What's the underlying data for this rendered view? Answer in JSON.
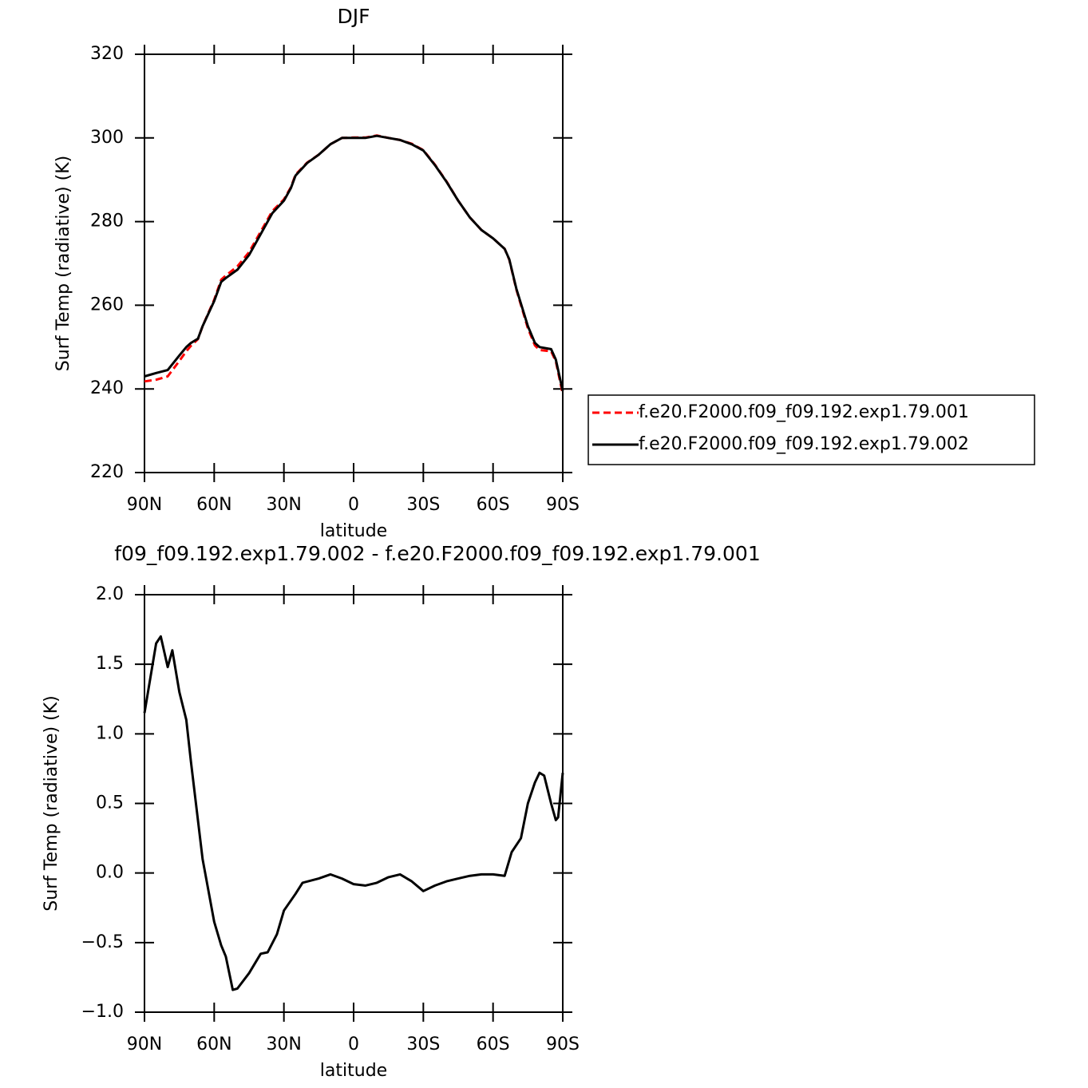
{
  "chart_data": [
    {
      "type": "line",
      "title": "DJF",
      "ylabel": "Surf Temp (radiative) (K)",
      "xlabel": "latitude",
      "x": [
        90,
        85,
        80,
        75,
        72,
        70,
        67,
        65,
        60,
        57,
        55,
        50,
        45,
        40,
        35,
        30,
        27,
        25,
        20,
        15,
        10,
        5,
        0,
        -5,
        -10,
        -15,
        -20,
        -25,
        -30,
        -35,
        -40,
        -45,
        -50,
        -55,
        -60,
        -65,
        -67,
        -70,
        -75,
        -78,
        -80,
        -85,
        -87,
        -90
      ],
      "xlim": [
        90,
        -90
      ],
      "xticks": [
        {
          "value": 90,
          "label": "90N"
        },
        {
          "value": 60,
          "label": "60N"
        },
        {
          "value": 30,
          "label": "30N"
        },
        0,
        {
          "value": -30,
          "label": "30S"
        },
        {
          "value": -60,
          "label": "60S"
        },
        {
          "value": -90,
          "label": "90S"
        }
      ],
      "ylim": [
        220,
        320
      ],
      "yticks": [
        220,
        240,
        260,
        280,
        300,
        320
      ],
      "legend": "right",
      "series": [
        {
          "name": "f.e20.F2000.f09_f09.192.exp1.79.001",
          "color": "#ff0000",
          "linestyle": "dashed",
          "values": [
            241.8,
            242.2,
            243,
            246.7,
            249,
            250.3,
            251.9,
            255,
            261.3,
            266.1,
            267.1,
            269.3,
            272.7,
            277.6,
            282.5,
            285.3,
            288.2,
            291.2,
            294.1,
            296,
            298.5,
            300,
            300.1,
            300.1,
            300.6,
            300,
            299.5,
            298.6,
            297.1,
            293.6,
            289.6,
            285,
            281,
            278,
            276,
            273.5,
            270.9,
            263.8,
            254.5,
            250.4,
            249.3,
            249,
            246.6,
            238.8
          ]
        },
        {
          "name": "f.e20.F2000.f09_f09.192.exp1.79.002",
          "color": "#000000",
          "linestyle": "solid",
          "values": [
            243,
            243.8,
            244.5,
            248,
            250,
            251,
            252,
            255,
            261,
            265.6,
            266.5,
            268.5,
            272,
            277,
            282,
            285,
            288,
            291,
            294,
            296,
            298.5,
            300,
            300,
            300,
            300.5,
            300,
            299.5,
            298.5,
            297,
            293.5,
            289.5,
            285,
            281,
            278,
            276,
            273.5,
            271,
            264,
            255,
            251,
            250,
            249.5,
            247,
            239.5
          ]
        }
      ]
    },
    {
      "type": "line",
      "title": "f09_f09.192.exp1.79.002 - f.e20.F2000.f09_f09.192.exp1.79.001",
      "ylabel": "Surf Temp (radiative) (K)",
      "xlabel": "latitude",
      "x": [
        90,
        87.5,
        85,
        83,
        80,
        78,
        75,
        72,
        70,
        65,
        60,
        57,
        55,
        52,
        50,
        45,
        40,
        37,
        33,
        30,
        25,
        22,
        15,
        10,
        5,
        0,
        -5,
        -10,
        -15,
        -20,
        -25,
        -30,
        -35,
        -40,
        -45,
        -50,
        -55,
        -60,
        -65,
        -68,
        -72,
        -75,
        -78,
        -80,
        -82,
        -85,
        -87,
        -88,
        -90
      ],
      "xlim": [
        90,
        -90
      ],
      "xticks": [
        {
          "value": 90,
          "label": "90N"
        },
        {
          "value": 60,
          "label": "60N"
        },
        {
          "value": 30,
          "label": "30N"
        },
        0,
        {
          "value": -30,
          "label": "30S"
        },
        {
          "value": -60,
          "label": "60S"
        },
        {
          "value": -90,
          "label": "90S"
        }
      ],
      "ylim": [
        -1,
        2
      ],
      "yticks": [
        {
          "value": -1,
          "label": "−1.0"
        },
        {
          "value": -0.5,
          "label": "−0.5"
        },
        {
          "value": 0,
          "label": "0.0"
        },
        0.5,
        {
          "value": 1,
          "label": "1.0"
        },
        1.5,
        {
          "value": 2,
          "label": "2.0"
        }
      ],
      "series": [
        {
          "color": "#000000",
          "linestyle": "solid",
          "values": [
            1.15,
            1.4,
            1.65,
            1.7,
            1.48,
            1.6,
            1.3,
            1.1,
            0.8,
            0.1,
            -0.35,
            -0.52,
            -0.6,
            -0.84,
            -0.83,
            -0.72,
            -0.58,
            -0.57,
            -0.44,
            -0.27,
            -0.15,
            -0.07,
            -0.04,
            -0.01,
            -0.04,
            -0.08,
            -0.09,
            -0.07,
            -0.03,
            -0.01,
            -0.06,
            -0.13,
            -0.09,
            -0.06,
            -0.04,
            -0.02,
            -0.01,
            -0.01,
            -0.02,
            0.15,
            0.25,
            0.5,
            0.65,
            0.72,
            0.7,
            0.5,
            0.38,
            0.4,
            0.72
          ]
        }
      ]
    }
  ]
}
